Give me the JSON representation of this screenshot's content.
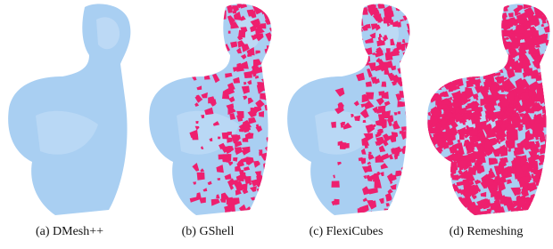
{
  "panels": [
    {
      "caption": "(a) DMesh++"
    },
    {
      "caption": "(b) GShell"
    },
    {
      "caption": "(c) FlexiCubes"
    },
    {
      "caption": "(d) Remeshing"
    }
  ]
}
